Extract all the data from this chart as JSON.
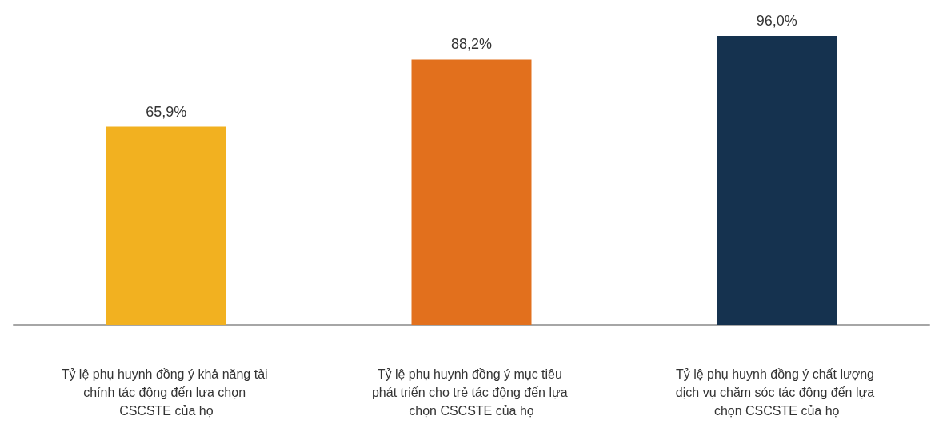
{
  "chart_data": {
    "type": "bar",
    "categories": [
      "Tỷ lệ phụ huynh đồng ý khả năng tài chính tác động đến lựa chọn CSCSTE của họ",
      "Tỷ lệ phụ huynh đồng ý mục tiêu phát triển cho trẻ tác động đến lựa chọn CSCSTE của họ",
      "Tỷ lệ phụ huynh đồng ý chất lượng dịch vụ chăm sóc tác động đến lựa chọn CSCSTE của họ"
    ],
    "values": [
      65.9,
      88.2,
      96.0
    ],
    "colors": [
      "#f2b120",
      "#e2701d",
      "#15324f"
    ],
    "value_labels": [
      "65,9%",
      "88,2%",
      "96,0%"
    ]
  }
}
